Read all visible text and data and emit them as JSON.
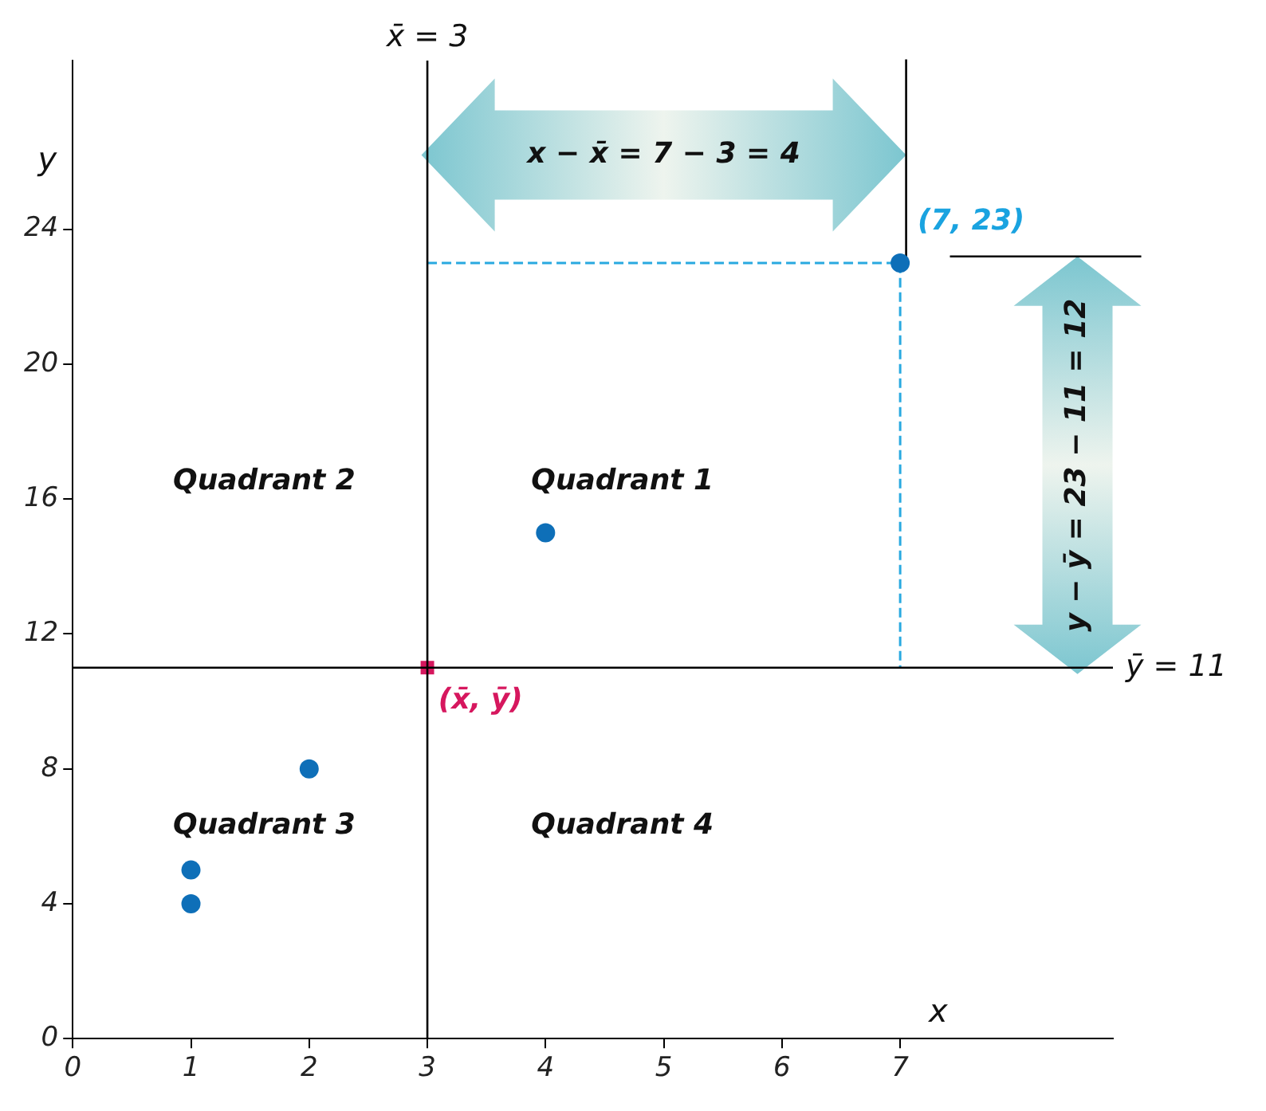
{
  "chart_data": {
    "type": "scatter",
    "xlabel": "x",
    "ylabel": "y",
    "xlim": [
      0,
      8.8
    ],
    "xticks": [
      0,
      1,
      2,
      3,
      4,
      5,
      6,
      7
    ],
    "ylim": [
      0,
      29
    ],
    "yticks": [
      0,
      4,
      8,
      12,
      16,
      20,
      24
    ],
    "grid": false,
    "legend": false,
    "series": [
      {
        "type": "scatter",
        "color": "#0e6fb8",
        "marker": "circle",
        "x": [
          1,
          1,
          2,
          4,
          7
        ],
        "values": [
          4,
          5,
          8,
          15,
          23
        ]
      },
      {
        "type": "scatter",
        "color": "#d6175e",
        "marker": "square",
        "x": [
          3
        ],
        "values": [
          11
        ]
      },
      {
        "type": "line",
        "color": "#29a9e0",
        "marker": "none",
        "line_style": "dashed",
        "x": [
          3,
          7,
          7
        ],
        "values": [
          23,
          23,
          11
        ]
      }
    ],
    "ref_lines": [
      {
        "axis": "x",
        "value": 3,
        "label": "x̄ = 3",
        "color": "#000000"
      },
      {
        "axis": "y",
        "value": 11,
        "label": "ȳ = 11",
        "color": "#000000"
      }
    ],
    "annotations": [
      "Quadrant 2",
      "Quadrant 1",
      "Quadrant 3",
      "Quadrant 4",
      "(7, 23)",
      "(x̄, ȳ)",
      "x − x̄ = 7 − 3 = 4",
      "y − ȳ = 23 − 11 = 12"
    ]
  }
}
